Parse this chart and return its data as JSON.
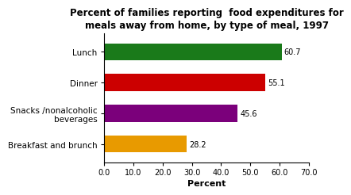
{
  "title": "Percent of families reporting  food expenditures for\nmeals away from home, by type of meal, 1997",
  "categories": [
    "Lunch",
    "Dinner",
    "Snacks /nonalcoholic\nbeverages",
    "Breakfast and brunch"
  ],
  "values": [
    60.7,
    55.1,
    45.6,
    28.2
  ],
  "bar_colors": [
    "#1a7a1a",
    "#cc0000",
    "#7b007b",
    "#e89a00"
  ],
  "xlabel": "Percent",
  "xlim": [
    0,
    70
  ],
  "xticks": [
    0.0,
    10.0,
    20.0,
    30.0,
    40.0,
    50.0,
    60.0,
    70.0
  ],
  "background_color": "#ffffff",
  "title_fontsize": 8.5,
  "label_fontsize": 7.5,
  "tick_fontsize": 7,
  "value_fontsize": 7,
  "xlabel_fontsize": 8,
  "bar_height": 0.55
}
